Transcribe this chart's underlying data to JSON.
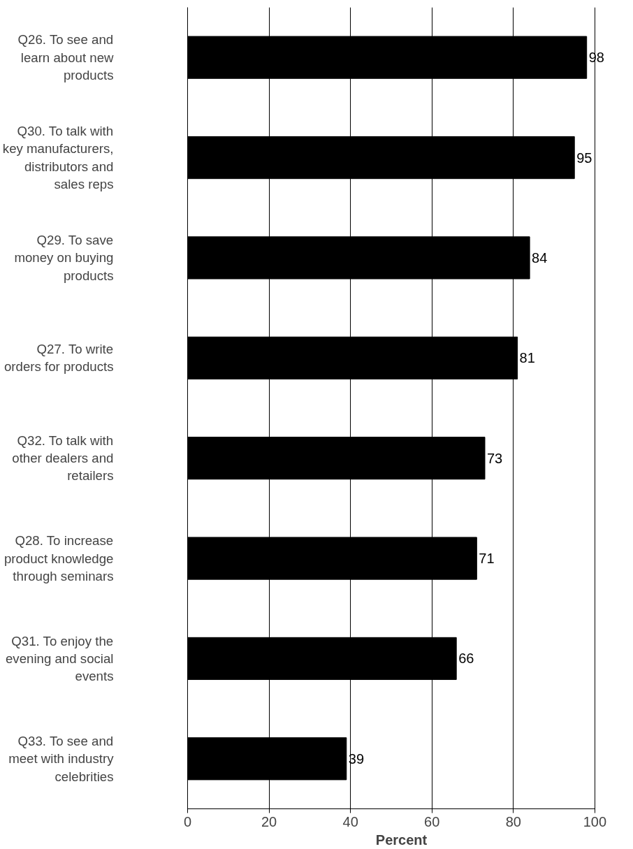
{
  "chart_data": {
    "type": "bar",
    "orientation": "horizontal",
    "xlabel": "Percent",
    "categories": [
      "Q26. To see and\nlearn about new\nproducts",
      "Q30. To talk with\nkey manufacturers,\ndistributors and\nsales reps",
      "Q29. To save\nmoney on buying\nproducts",
      "Q27. To write\norders for products",
      "Q32. To talk with\nother dealers and\nretailers",
      "Q28. To increase\nproduct knowledge\nthrough seminars",
      "Q31. To enjoy the\nevening and social\nevents",
      "Q33. To see and\nmeet with industry\ncelebrities"
    ],
    "values": [
      98,
      95,
      84,
      81,
      73,
      71,
      66,
      39
    ],
    "color": "#000000",
    "xlim": [
      0,
      100
    ],
    "xticks": [
      0,
      20,
      40,
      60,
      80,
      100
    ],
    "grid": "x",
    "data_labels": true
  }
}
